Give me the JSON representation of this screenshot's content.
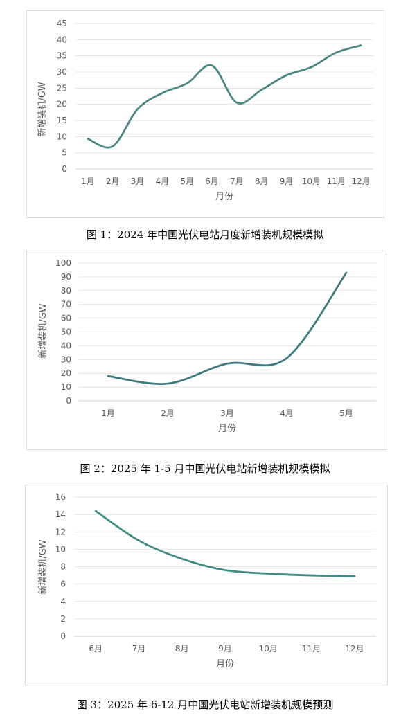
{
  "chart_data": [
    {
      "type": "line",
      "categories": [
        "1月",
        "2月",
        "3月",
        "4月",
        "5月",
        "6月",
        "7月",
        "8月",
        "9月",
        "10月",
        "11月",
        "12月"
      ],
      "series": [
        {
          "values": [
            9.3,
            7.0,
            18.5,
            23.5,
            26.5,
            32.0,
            20.5,
            24.5,
            29.0,
            31.5,
            36.0,
            38.2
          ]
        }
      ],
      "xlabel": "月份",
      "ylabel": "新增装机/GW",
      "ylim": [
        0,
        45
      ],
      "yticks": [
        0,
        5,
        10,
        15,
        20,
        25,
        30,
        35,
        40,
        45
      ],
      "grid": true,
      "color": "#4a8785"
    },
    {
      "type": "line",
      "categories": [
        "1月",
        "2月",
        "3月",
        "4月",
        "5月"
      ],
      "series": [
        {
          "values": [
            18,
            12.5,
            27,
            31,
            93
          ]
        }
      ],
      "xlabel": "月份",
      "ylabel": "新增装机/GW",
      "ylim": [
        0,
        100
      ],
      "yticks": [
        0,
        10,
        20,
        30,
        40,
        50,
        60,
        70,
        80,
        90,
        100
      ],
      "grid": true,
      "color": "#3f7a80"
    },
    {
      "type": "line",
      "categories": [
        "6月",
        "7月",
        "8月",
        "9月",
        "10月",
        "11月",
        "12月"
      ],
      "series": [
        {
          "values": [
            14.4,
            11.0,
            8.9,
            7.6,
            7.2,
            7.0,
            6.9
          ]
        }
      ],
      "xlabel": "月份",
      "ylabel": "新增装机/GW",
      "ylim": [
        0,
        16
      ],
      "yticks": [
        0,
        2,
        4,
        6,
        8,
        10,
        12,
        14,
        16
      ],
      "grid": true,
      "color": "#3e8c85"
    }
  ],
  "captions": [
    "图 1：2024 年中国光伏电站月度新增装机规模模拟",
    "图 2：2025 年 1-5 月中国光伏电站新增装机规模模拟",
    "图 3：2025 年 6-12 月中国光伏电站新增装机规模预测"
  ]
}
